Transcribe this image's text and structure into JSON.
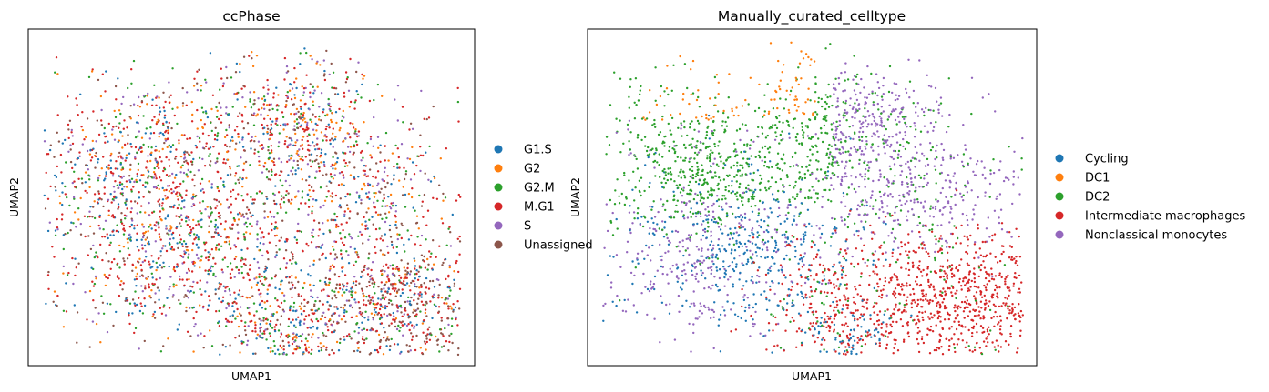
{
  "chart_data": [
    {
      "type": "scatter",
      "title": "ccPhase",
      "xlabel": "UMAP1",
      "ylabel": "UMAP2",
      "ticks": "none",
      "grid": false,
      "legend_position": "right",
      "legend_entries": [
        {
          "label": "G1.S",
          "color": "#1f77b4"
        },
        {
          "label": "G2",
          "color": "#ff7f0e"
        },
        {
          "label": "G2.M",
          "color": "#2ca02c"
        },
        {
          "label": "M.G1",
          "color": "#d62728"
        },
        {
          "label": "S",
          "color": "#9467bd"
        },
        {
          "label": "Unassigned",
          "color": "#8c564b"
        }
      ]
    },
    {
      "type": "scatter",
      "title": "Manually_curated_celltype",
      "xlabel": "UMAP1",
      "ylabel": "UMAP2",
      "ticks": "none",
      "grid": false,
      "legend_position": "right",
      "legend_entries": [
        {
          "label": "Cycling",
          "color": "#1f77b4"
        },
        {
          "label": "DC1",
          "color": "#ff7f0e"
        },
        {
          "label": "DC2",
          "color": "#2ca02c"
        },
        {
          "label": "Intermediate macrophages",
          "color": "#d62728"
        },
        {
          "label": "Nonclassical monocytes",
          "color": "#9467bd"
        }
      ]
    }
  ]
}
